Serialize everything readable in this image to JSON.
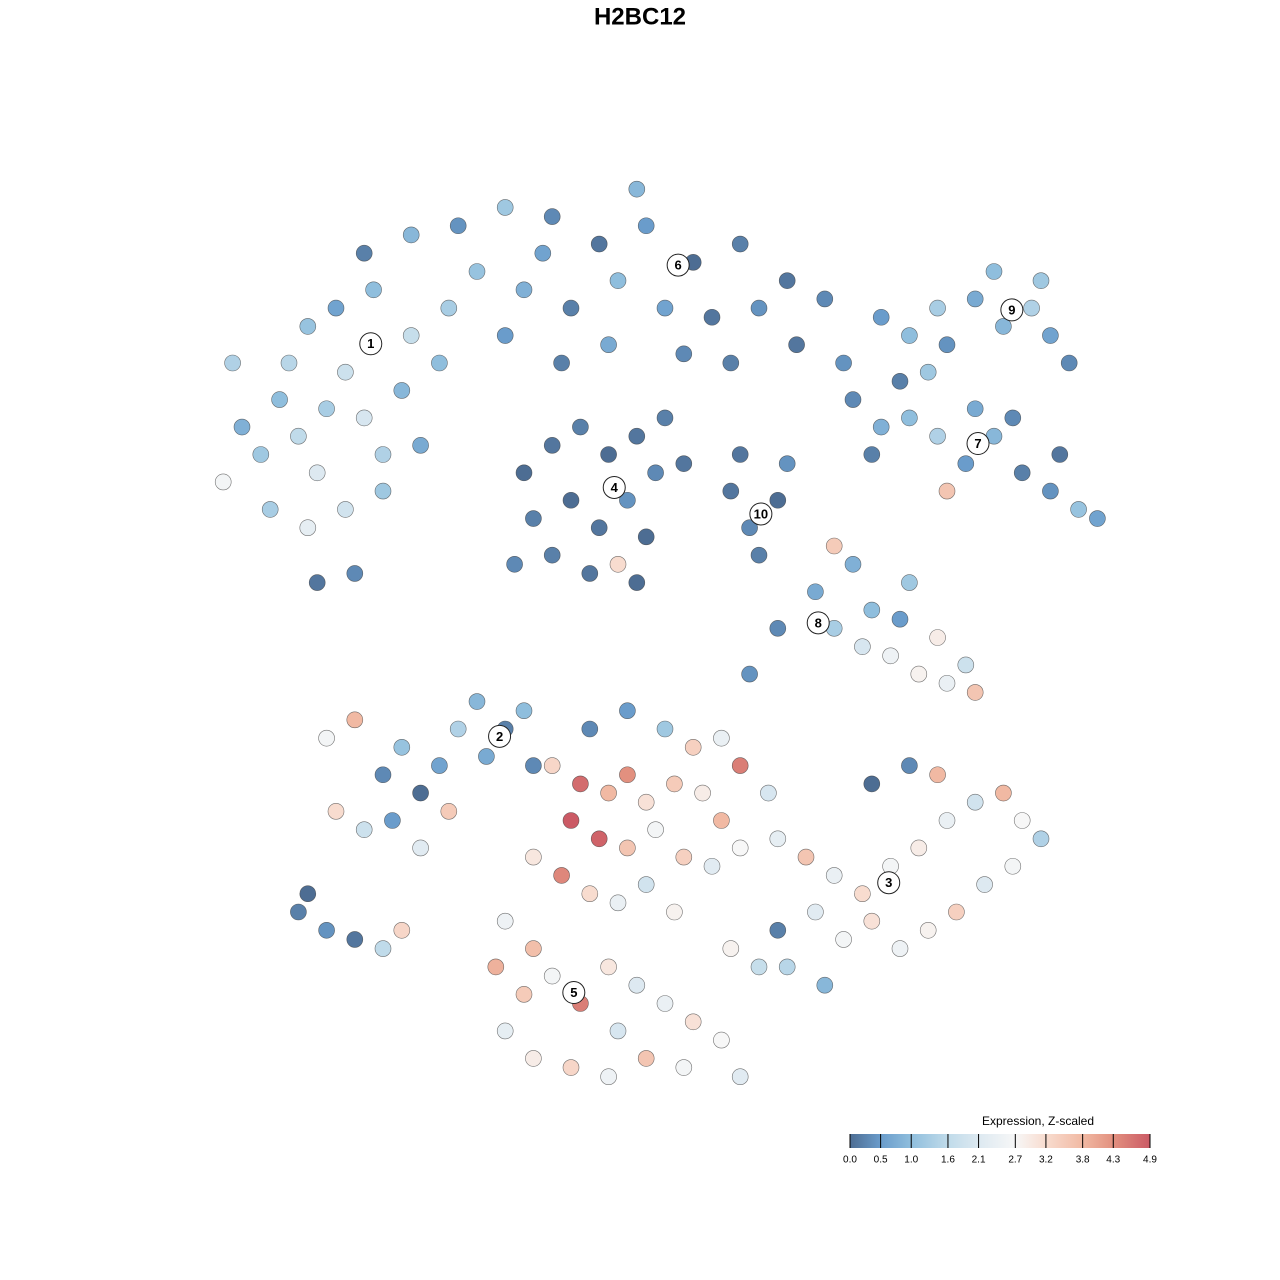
{
  "chart_data": {
    "type": "scatter",
    "title": "H2BC12",
    "xlim": [
      0,
      100
    ],
    "ylim": [
      0,
      100
    ],
    "x": [
      5,
      7,
      9,
      11,
      13,
      14,
      16,
      18,
      20,
      22,
      12,
      15,
      19,
      23,
      10,
      8,
      12,
      16,
      20,
      24,
      13,
      17,
      4,
      3,
      26,
      18,
      23,
      28,
      33,
      38,
      43,
      48,
      53,
      58,
      63,
      67,
      30,
      35,
      40,
      45,
      50,
      55,
      60,
      27,
      33,
      39,
      44,
      52,
      57,
      64,
      69,
      37,
      47,
      35,
      38,
      41,
      44,
      47,
      49,
      36,
      40,
      43,
      46,
      48,
      38,
      42,
      45,
      34,
      47,
      50,
      52,
      57,
      59,
      62,
      60,
      63,
      58,
      70,
      73,
      76,
      79,
      82,
      85,
      88,
      91,
      94,
      96,
      75,
      78,
      83,
      87,
      80,
      72,
      92,
      73,
      76,
      79,
      83,
      86,
      89,
      91,
      93,
      85,
      80,
      90,
      66,
      68,
      71,
      74,
      77,
      80,
      82,
      72,
      75,
      79,
      83,
      70,
      68,
      76,
      62,
      59,
      14,
      17,
      20,
      22,
      24,
      26,
      28,
      30,
      33,
      36,
      15,
      18,
      21,
      24,
      27,
      35,
      31,
      11,
      14,
      17,
      20,
      22,
      12,
      38,
      41,
      44,
      46,
      48,
      51,
      54,
      56,
      40,
      43,
      46,
      49,
      52,
      55,
      58,
      36,
      39,
      42,
      45,
      48,
      51,
      33,
      36,
      32,
      35,
      38,
      41,
      44,
      47,
      50,
      53,
      56,
      33,
      36,
      40,
      44,
      48,
      52,
      58,
      45,
      60,
      62,
      57,
      46,
      50,
      53,
      56,
      58,
      61,
      42,
      62,
      65,
      68,
      71,
      74,
      77,
      80,
      83,
      86,
      88,
      90,
      66,
      69,
      72,
      75,
      78,
      81,
      84,
      87,
      63,
      67,
      72,
      76,
      79
    ],
    "y": [
      73,
      70,
      76,
      72,
      68,
      75,
      79,
      74,
      70,
      77,
      84,
      86,
      88,
      83,
      80,
      64,
      62,
      64,
      66,
      71,
      56,
      57,
      80,
      67,
      80,
      92,
      94,
      95,
      97,
      96,
      93,
      95,
      91,
      93,
      89,
      87,
      90,
      88,
      86,
      89,
      86,
      85,
      86,
      86,
      83,
      80,
      82,
      81,
      80,
      82,
      80,
      92,
      99,
      68,
      71,
      73,
      70,
      72,
      68,
      63,
      65,
      62,
      65,
      61,
      59,
      57,
      58,
      58,
      56,
      74,
      69,
      66,
      62,
      65,
      59,
      69,
      70,
      76,
      73,
      74,
      72,
      69,
      72,
      68,
      66,
      64,
      63,
      78,
      79,
      75,
      74,
      66,
      70,
      70,
      85,
      83,
      86,
      87,
      84,
      86,
      83,
      80,
      90,
      82,
      89,
      55,
      51,
      49,
      48,
      46,
      45,
      47,
      53,
      52,
      50,
      44,
      58,
      60,
      56,
      51,
      46,
      39,
      41,
      35,
      38,
      33,
      36,
      40,
      43,
      40,
      36,
      31,
      29,
      30,
      27,
      31,
      42,
      37,
      20,
      18,
      17,
      16,
      18,
      22,
      36,
      34,
      33,
      35,
      32,
      34,
      33,
      30,
      30,
      28,
      27,
      29,
      26,
      25,
      27,
      26,
      24,
      22,
      21,
      23,
      20,
      19,
      16,
      14,
      11,
      13,
      10,
      14,
      12,
      10,
      8,
      6,
      7,
      4,
      3,
      2,
      4,
      3,
      2,
      7,
      14,
      18,
      16,
      42,
      40,
      38,
      39,
      36,
      33,
      40,
      28,
      26,
      24,
      22,
      25,
      27,
      30,
      32,
      33,
      30,
      28,
      20,
      17,
      19,
      16,
      18,
      20,
      23,
      25,
      14,
      12,
      34,
      36,
      35
    ],
    "values": [
      0.8,
      1.2,
      1.0,
      1.6,
      2.1,
      1.3,
      1.8,
      2.0,
      1.4,
      0.9,
      1.1,
      0.6,
      1.0,
      1.7,
      1.5,
      1.3,
      2.3,
      1.9,
      1.2,
      0.7,
      0.1,
      0.3,
      1.4,
      2.6,
      1.0,
      0.2,
      0.9,
      0.4,
      1.2,
      0.3,
      0.1,
      0.5,
      0.0,
      0.2,
      0.1,
      0.3,
      1.1,
      0.8,
      0.2,
      1.0,
      0.6,
      0.1,
      0.4,
      1.3,
      0.5,
      0.2,
      0.7,
      0.3,
      0.2,
      0.1,
      0.4,
      0.6,
      0.9,
      0.0,
      0.1,
      0.2,
      0.0,
      0.1,
      0.3,
      0.2,
      0.0,
      0.1,
      0.4,
      0.0,
      0.2,
      0.1,
      3.2,
      0.3,
      0.0,
      0.2,
      0.1,
      0.1,
      0.3,
      0.0,
      0.2,
      0.4,
      0.1,
      0.3,
      0.8,
      1.0,
      1.4,
      0.5,
      0.9,
      0.2,
      0.4,
      1.1,
      0.6,
      0.2,
      1.2,
      0.7,
      0.3,
      3.6,
      0.2,
      0.1,
      0.5,
      1.0,
      1.3,
      0.7,
      0.9,
      1.4,
      0.6,
      0.3,
      1.0,
      0.4,
      1.2,
      0.7,
      1.3,
      2.0,
      2.5,
      2.8,
      2.4,
      1.8,
      1.0,
      0.5,
      2.9,
      3.6,
      0.8,
      3.5,
      1.2,
      0.3,
      0.4,
      2.6,
      3.8,
      0.3,
      1.1,
      0.0,
      0.6,
      1.4,
      0.9,
      0.2,
      0.3,
      3.2,
      1.8,
      0.5,
      2.2,
      3.5,
      1.0,
      0.7,
      0.2,
      0.4,
      0.1,
      1.6,
      3.3,
      0.0,
      3.3,
      4.7,
      3.8,
      4.3,
      3.1,
      3.5,
      2.9,
      3.8,
      4.9,
      4.8,
      3.6,
      2.6,
      3.4,
      2.2,
      2.7,
      3.0,
      4.4,
      3.2,
      2.4,
      1.9,
      2.8,
      2.5,
      3.7,
      3.9,
      3.5,
      2.6,
      4.5,
      3.0,
      2.1,
      2.4,
      3.1,
      2.7,
      2.3,
      2.9,
      3.3,
      2.5,
      3.6,
      2.6,
      2.2,
      2.0,
      1.7,
      0.2,
      2.8,
      0.5,
      1.2,
      3.4,
      2.4,
      4.5,
      2.0,
      0.3,
      2.3,
      3.6,
      2.4,
      3.2,
      2.6,
      2.9,
      2.4,
      1.9,
      3.8,
      2.7,
      1.4,
      2.2,
      2.6,
      3.1,
      2.5,
      2.8,
      3.4,
      2.1,
      2.6,
      1.5,
      0.9,
      0.0,
      0.3,
      3.8
    ],
    "clusters": [
      {
        "label": "1",
        "x": 18.7,
        "y": 82.1
      },
      {
        "label": "2",
        "x": 32.4,
        "y": 39.2
      },
      {
        "label": "3",
        "x": 73.8,
        "y": 23.2
      },
      {
        "label": "4",
        "x": 44.6,
        "y": 66.4
      },
      {
        "label": "5",
        "x": 40.3,
        "y": 11.2
      },
      {
        "label": "6",
        "x": 51.4,
        "y": 90.7
      },
      {
        "label": "7",
        "x": 83.3,
        "y": 71.2
      },
      {
        "label": "8",
        "x": 66.3,
        "y": 51.6
      },
      {
        "label": "9",
        "x": 86.9,
        "y": 85.8
      },
      {
        "label": "10",
        "x": 60.2,
        "y": 63.5
      }
    ],
    "legend": {
      "title": "Expression, Z-scaled",
      "clim": [
        0,
        4.9
      ],
      "ticks": [
        {
          "value": 0,
          "label": "0.0"
        },
        0.5,
        {
          "value": 1,
          "label": "1.0"
        },
        1.6,
        2.1,
        2.7,
        3.2,
        3.8,
        4.3,
        4.9
      ],
      "colors": [
        "#4d6d93",
        "#6a9ccb",
        "#8fbedd",
        "#c0dbea",
        "#dde9f1",
        "#f7f7f7",
        "#f8dccf",
        "#f1b9a3",
        "#e2907f",
        "#cb5a65"
      ]
    }
  }
}
